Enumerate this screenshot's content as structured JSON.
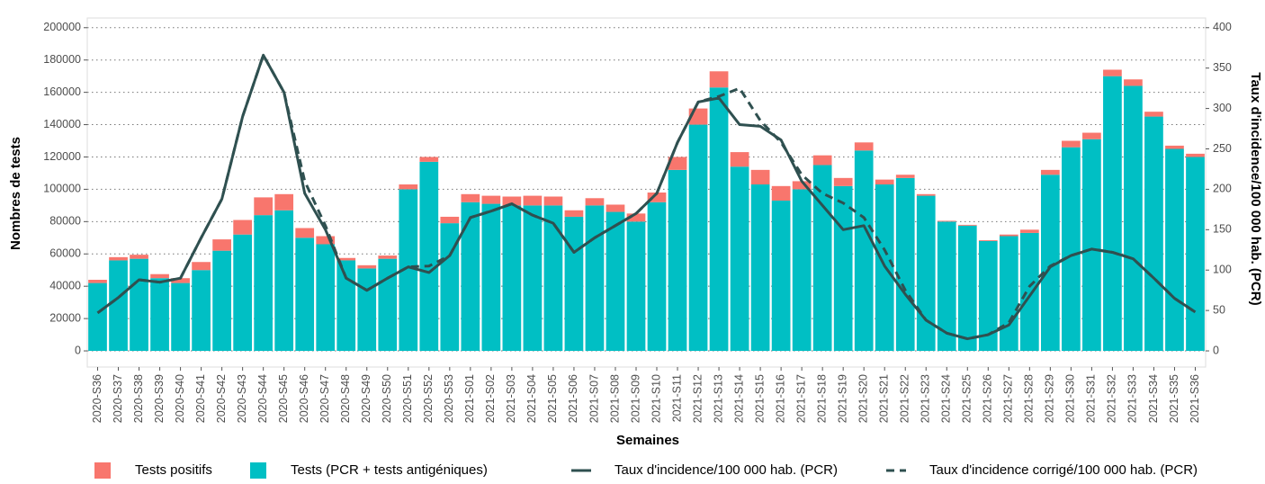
{
  "chart_data": {
    "type": "bar",
    "x_label": "Semaines",
    "y_label": "Nombres de tests",
    "y2_label": "Taux d'incidence/100 000 hab. (PCR)",
    "categories": [
      "2020-S36",
      "2020-S37",
      "2020-S38",
      "2020-S39",
      "2020-S40",
      "2020-S41",
      "2020-S42",
      "2020-S43",
      "2020-S44",
      "2020-S45",
      "2020-S46",
      "2020-S47",
      "2020-S48",
      "2020-S49",
      "2020-S50",
      "2020-S51",
      "2020-S52",
      "2020-S53",
      "2021-S01",
      "2021-S02",
      "2021-S03",
      "2021-S04",
      "2021-S05",
      "2021-S06",
      "2021-S07",
      "2021-S08",
      "2021-S09",
      "2021-S10",
      "2021-S11",
      "2021-S12",
      "2021-S13",
      "2021-S14",
      "2021-S15",
      "2021-S16",
      "2021-S17",
      "2021-S18",
      "2021-S19",
      "2021-S20",
      "2021-S21",
      "2021-S22",
      "2021-S23",
      "2021-S24",
      "2021-S25",
      "2021-S26",
      "2021-S27",
      "2021-S28",
      "2021-S29",
      "2021-S30",
      "2021-S31",
      "2021-S32",
      "2021-S33",
      "2021-S34",
      "2021-S35",
      "2021-S36"
    ],
    "series": [
      {
        "name": "Tests positifs",
        "type": "bar",
        "stack": 1,
        "color": "#f8766d",
        "values": [
          2000,
          2000,
          2500,
          2500,
          3000,
          5000,
          7000,
          9000,
          11000,
          10000,
          6000,
          5000,
          1500,
          2000,
          2000,
          3000,
          3000,
          4000,
          5000,
          5000,
          5500,
          6000,
          5500,
          4000,
          4500,
          4500,
          5000,
          6000,
          8000,
          10000,
          10000,
          9000,
          9000,
          9000,
          5000,
          6000,
          5000,
          5000,
          3000,
          2000,
          1000,
          500,
          500,
          500,
          1000,
          2000,
          3000,
          4000,
          4000,
          4000,
          4000,
          3000,
          2000,
          2000
        ]
      },
      {
        "name": "Tests (PCR + tests antigéniques)",
        "type": "bar",
        "stack": 0,
        "color": "#00bfc4",
        "values": [
          42000,
          56000,
          57000,
          45000,
          42000,
          50000,
          62000,
          72000,
          84000,
          87000,
          70000,
          66000,
          56000,
          51000,
          57000,
          100000,
          117000,
          79000,
          92000,
          91000,
          90000,
          90000,
          90000,
          83000,
          90000,
          86000,
          80000,
          92000,
          112000,
          140000,
          163000,
          114000,
          103000,
          93000,
          100000,
          115000,
          102000,
          124000,
          103000,
          107000,
          96000,
          80000,
          77500,
          68000,
          71000,
          73000,
          109000,
          126000,
          131000,
          170000,
          164000,
          145000,
          125000,
          120000
        ]
      },
      {
        "name": "Taux d'incidence/100 000 hab. (PCR)",
        "type": "line",
        "axis": "y2",
        "dashed": false,
        "color": "#2f5050",
        "values": [
          47,
          66,
          88,
          85,
          90,
          140,
          188,
          290,
          366,
          320,
          195,
          150,
          90,
          75,
          90,
          104,
          97,
          118,
          165,
          173,
          182,
          168,
          158,
          122,
          140,
          155,
          170,
          195,
          258,
          308,
          313,
          280,
          278,
          261,
          210,
          180,
          150,
          155,
          105,
          70,
          38,
          22,
          15,
          20,
          32,
          68,
          104,
          118,
          126,
          122,
          114,
          90,
          65,
          48
        ]
      },
      {
        "name": "Taux d'incidence corrigé/100 000 hab. (PCR)",
        "type": "line",
        "axis": "y2",
        "dashed": true,
        "color": "#2f5050",
        "values": [
          47,
          66,
          88,
          85,
          90,
          140,
          188,
          290,
          366,
          320,
          210,
          155,
          90,
          75,
          90,
          104,
          105,
          118,
          165,
          173,
          182,
          168,
          158,
          122,
          140,
          155,
          170,
          195,
          258,
          308,
          315,
          325,
          285,
          258,
          218,
          195,
          183,
          165,
          125,
          75,
          38,
          22,
          15,
          20,
          35,
          80,
          105,
          118,
          126,
          122,
          114,
          90,
          65,
          48
        ]
      }
    ],
    "ylim": [
      -10000,
      206000
    ],
    "yticks": [
      0,
      20000,
      40000,
      60000,
      80000,
      100000,
      120000,
      140000,
      160000,
      180000,
      200000
    ],
    "y2lim": [
      -20,
      412
    ],
    "y2ticks": [
      0,
      50,
      100,
      150,
      200,
      250,
      300,
      350,
      400
    ],
    "grid": true
  }
}
